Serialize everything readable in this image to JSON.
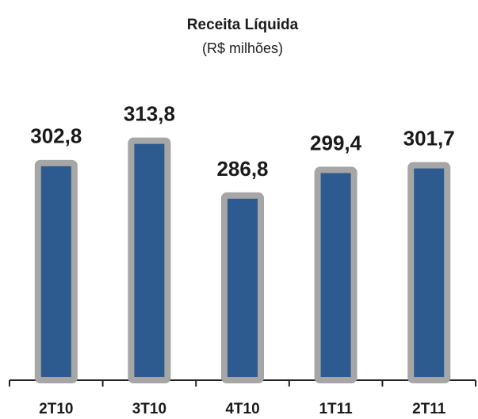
{
  "chart_data": {
    "type": "bar",
    "title": "Receita Líquida",
    "subtitle": "(R$ milhões)",
    "categories": [
      "2T10",
      "3T10",
      "4T10",
      "1T11",
      "2T11"
    ],
    "values": [
      302.8,
      313.8,
      286.8,
      299.4,
      301.7
    ],
    "value_labels": [
      "302,8",
      "313,8",
      "286,8",
      "299,4",
      "301,7"
    ],
    "color": "#2e5b8f",
    "border_color": "#a6a6a6",
    "ylim": [
      196,
      330
    ]
  }
}
